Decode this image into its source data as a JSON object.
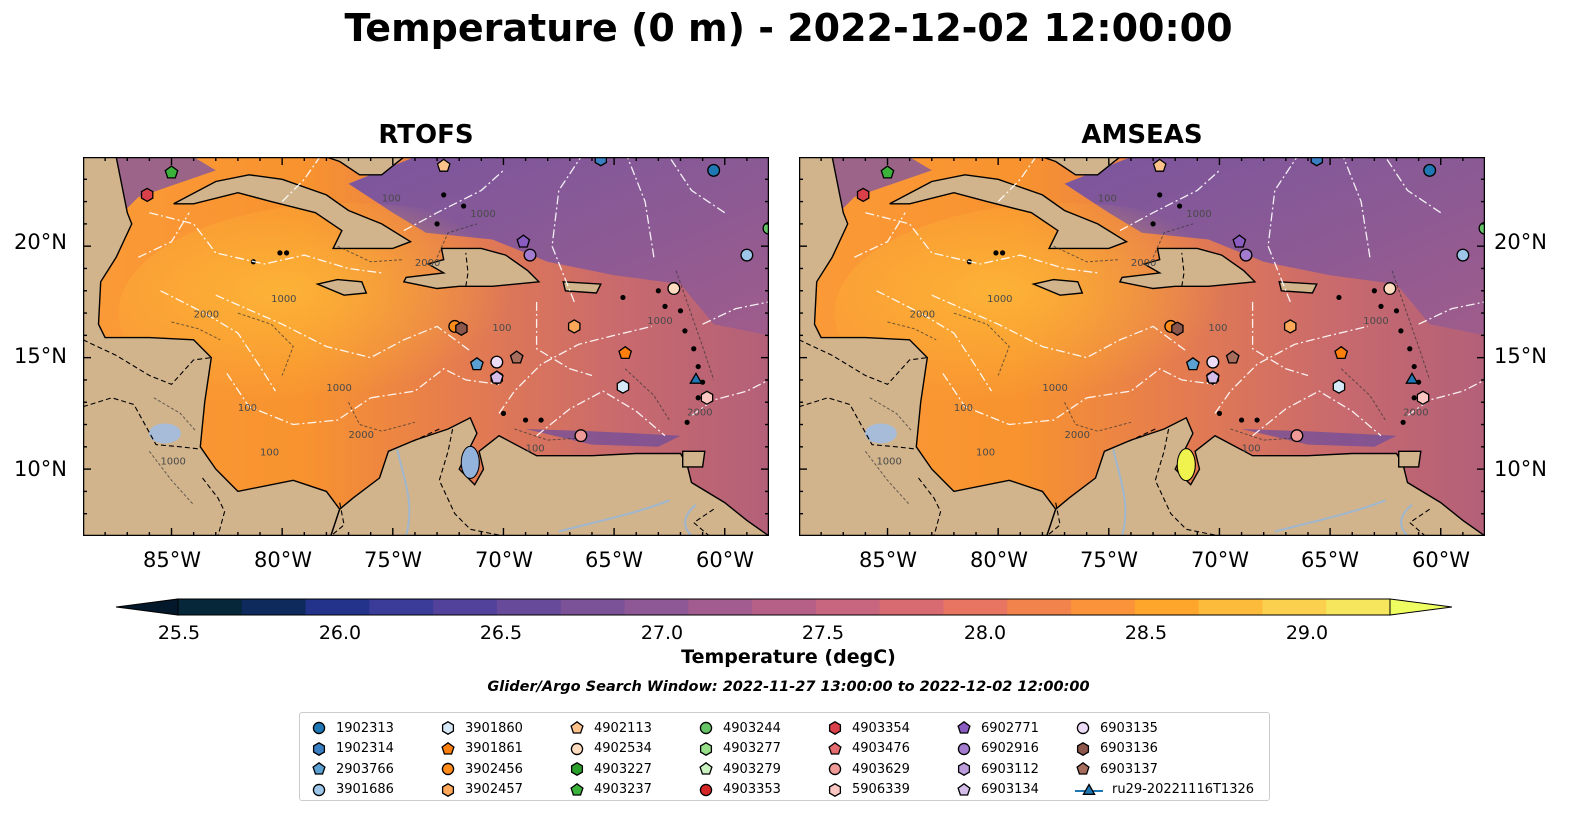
{
  "title": "Temperature (0 m) - 2022-12-02 12:00:00",
  "panels": [
    {
      "name": "rtofs",
      "title": "RTOFS"
    },
    {
      "name": "amseas",
      "title": "AMSEAS"
    }
  ],
  "map": {
    "lon_range": [
      -89,
      -58
    ],
    "lat_range": [
      7,
      24
    ],
    "lon_ticks": [
      "85°W",
      "80°W",
      "75°W",
      "70°W",
      "65°W",
      "60°W"
    ],
    "lat_ticks": [
      "20°N",
      "15°N",
      "10°N"
    ],
    "land_color": "#d2b48c",
    "masked_ocean_color": "#93b3dc",
    "contour_labels": [
      "100",
      "1000",
      "2000"
    ]
  },
  "colorbar": {
    "label": "Temperature (degC)",
    "ticks": [
      "25.5",
      "26.0",
      "26.5",
      "27.0",
      "27.5",
      "28.0",
      "28.5",
      "29.0"
    ],
    "range": [
      25.5,
      29.5
    ],
    "colors": [
      "#06263a",
      "#0e2a5c",
      "#23338c",
      "#3b3b9a",
      "#53429c",
      "#674a9a",
      "#7b5298",
      "#8e5795",
      "#a35c8f",
      "#b66088",
      "#c8657f",
      "#d86b72",
      "#e77561",
      "#f3834d",
      "#fa9339",
      "#fea62c",
      "#fdbb3b",
      "#fbd04f",
      "#f5e65e"
    ],
    "extend_low_color": "#03182b",
    "extend_high_color": "#efff62"
  },
  "search_window": "Glider/Argo Search Window: 2022-11-27 13:00:00 to 2022-12-02 12:00:00",
  "legend": {
    "columns": [
      [
        {
          "label": "1902313",
          "marker": "circle",
          "color": "#1f77b4"
        },
        {
          "label": "1902314",
          "marker": "hexagon",
          "color": "#3a7fc2"
        },
        {
          "label": "2903766",
          "marker": "pentagon",
          "color": "#5aa0d2"
        },
        {
          "label": "3901686",
          "marker": "circle",
          "color": "#9dc6e8"
        }
      ],
      [
        {
          "label": "3901860",
          "marker": "hexagon",
          "color": "#d6e9f8"
        },
        {
          "label": "3901861",
          "marker": "pentagon",
          "color": "#ff7f0e"
        },
        {
          "label": "3902456",
          "marker": "circle",
          "color": "#ff8c1a"
        },
        {
          "label": "3902457",
          "marker": "hexagon",
          "color": "#ffa85a"
        }
      ],
      [
        {
          "label": "4902113",
          "marker": "pentagon",
          "color": "#ffc28a"
        },
        {
          "label": "4902534",
          "marker": "circle",
          "color": "#ffdcbf"
        },
        {
          "label": "4903227",
          "marker": "hexagon",
          "color": "#2ca02c"
        },
        {
          "label": "4903237",
          "marker": "pentagon",
          "color": "#3bb33b"
        }
      ],
      [
        {
          "label": "4903244",
          "marker": "circle",
          "color": "#66c466"
        },
        {
          "label": "4903277",
          "marker": "hexagon",
          "color": "#98df8a"
        },
        {
          "label": "4903279",
          "marker": "pentagon",
          "color": "#c9f2c0"
        },
        {
          "label": "4903353",
          "marker": "circle",
          "color": "#d62728"
        }
      ],
      [
        {
          "label": "4903354",
          "marker": "hexagon",
          "color": "#d9404a"
        },
        {
          "label": "4903476",
          "marker": "pentagon",
          "color": "#e56b6f"
        },
        {
          "label": "4903629",
          "marker": "circle",
          "color": "#f09a98"
        },
        {
          "label": "5906339",
          "marker": "hexagon",
          "color": "#fcc7c2"
        }
      ],
      [
        {
          "label": "6902771",
          "marker": "pentagon",
          "color": "#8a5cc2"
        },
        {
          "label": "6902916",
          "marker": "circle",
          "color": "#a37cd0"
        },
        {
          "label": "6903112",
          "marker": "hexagon",
          "color": "#bc9ddc"
        },
        {
          "label": "6903134",
          "marker": "pentagon",
          "color": "#d4bde9"
        }
      ],
      [
        {
          "label": "6903135",
          "marker": "circle",
          "color": "#ecdcf5"
        },
        {
          "label": "6903136",
          "marker": "hexagon",
          "color": "#8c564b"
        },
        {
          "label": "6903137",
          "marker": "pentagon",
          "color": "#a86e5d"
        },
        {
          "label": "ru29-20221116T1326",
          "marker": "triangle-line",
          "color": "#1f77b4"
        }
      ]
    ]
  },
  "floats": [
    {
      "id": "1902313",
      "lon": -60.5,
      "lat": 23.4,
      "marker": "circle",
      "color": "#1f77b4"
    },
    {
      "id": "1902314",
      "lon": -65.6,
      "lat": 23.9,
      "marker": "hexagon",
      "color": "#3a7fc2"
    },
    {
      "id": "3901686",
      "lon": -59.0,
      "lat": 19.6,
      "marker": "circle",
      "color": "#9dc6e8"
    },
    {
      "id": "3901860",
      "lon": -64.6,
      "lat": 13.7,
      "marker": "hexagon",
      "color": "#d6e9f8"
    },
    {
      "id": "3901861",
      "lon": -64.5,
      "lat": 15.2,
      "marker": "pentagon",
      "color": "#ff7f0e"
    },
    {
      "id": "3902456",
      "lon": -72.2,
      "lat": 16.4,
      "marker": "circle",
      "color": "#ff8c1a"
    },
    {
      "id": "3902457",
      "lon": -66.8,
      "lat": 16.4,
      "marker": "hexagon",
      "color": "#ffa85a"
    },
    {
      "id": "4902113",
      "lon": -72.7,
      "lat": 23.6,
      "marker": "pentagon",
      "color": "#ffc28a"
    },
    {
      "id": "4902534",
      "lon": -62.3,
      "lat": 18.1,
      "marker": "circle",
      "color": "#ffdcbf"
    },
    {
      "id": "4903237",
      "lon": -85.0,
      "lat": 23.3,
      "marker": "pentagon",
      "color": "#3bb33b"
    },
    {
      "id": "4903244",
      "lon": -58.0,
      "lat": 20.8,
      "marker": "circle",
      "color": "#66c466"
    },
    {
      "id": "4903354",
      "lon": -86.1,
      "lat": 22.3,
      "marker": "hexagon",
      "color": "#d9404a"
    },
    {
      "id": "4903629",
      "lon": -66.5,
      "lat": 11.5,
      "marker": "circle",
      "color": "#f09a98"
    },
    {
      "id": "5906339",
      "lon": -60.8,
      "lat": 13.2,
      "marker": "hexagon",
      "color": "#fcc7c2"
    },
    {
      "id": "6902771",
      "lon": -69.1,
      "lat": 20.2,
      "marker": "pentagon",
      "color": "#8a5cc2"
    },
    {
      "id": "6902916",
      "lon": -68.8,
      "lat": 19.6,
      "marker": "circle",
      "color": "#a37cd0"
    },
    {
      "id": "6903112",
      "lon": -70.3,
      "lat": 14.1,
      "marker": "hexagon",
      "color": "#bc9ddc"
    },
    {
      "id": "6903134",
      "lon": -70.3,
      "lat": 14.1,
      "marker": "pentagon",
      "color": "#d4bde9"
    },
    {
      "id": "6903135",
      "lon": -70.3,
      "lat": 14.8,
      "marker": "circle",
      "color": "#ecdcf5"
    },
    {
      "id": "6903136",
      "lon": -71.9,
      "lat": 16.3,
      "marker": "hexagon",
      "color": "#8c564b"
    },
    {
      "id": "6903137",
      "lon": -69.4,
      "lat": 15.0,
      "marker": "pentagon",
      "color": "#a86e5d"
    },
    {
      "id": "2903766",
      "lon": -71.2,
      "lat": 14.7,
      "marker": "pentagon",
      "color": "#5aa0d2"
    },
    {
      "id": "ru29-20221116T1326",
      "lon": -61.3,
      "lat": 14.0,
      "marker": "triangle",
      "color": "#1f77b4"
    }
  ]
}
